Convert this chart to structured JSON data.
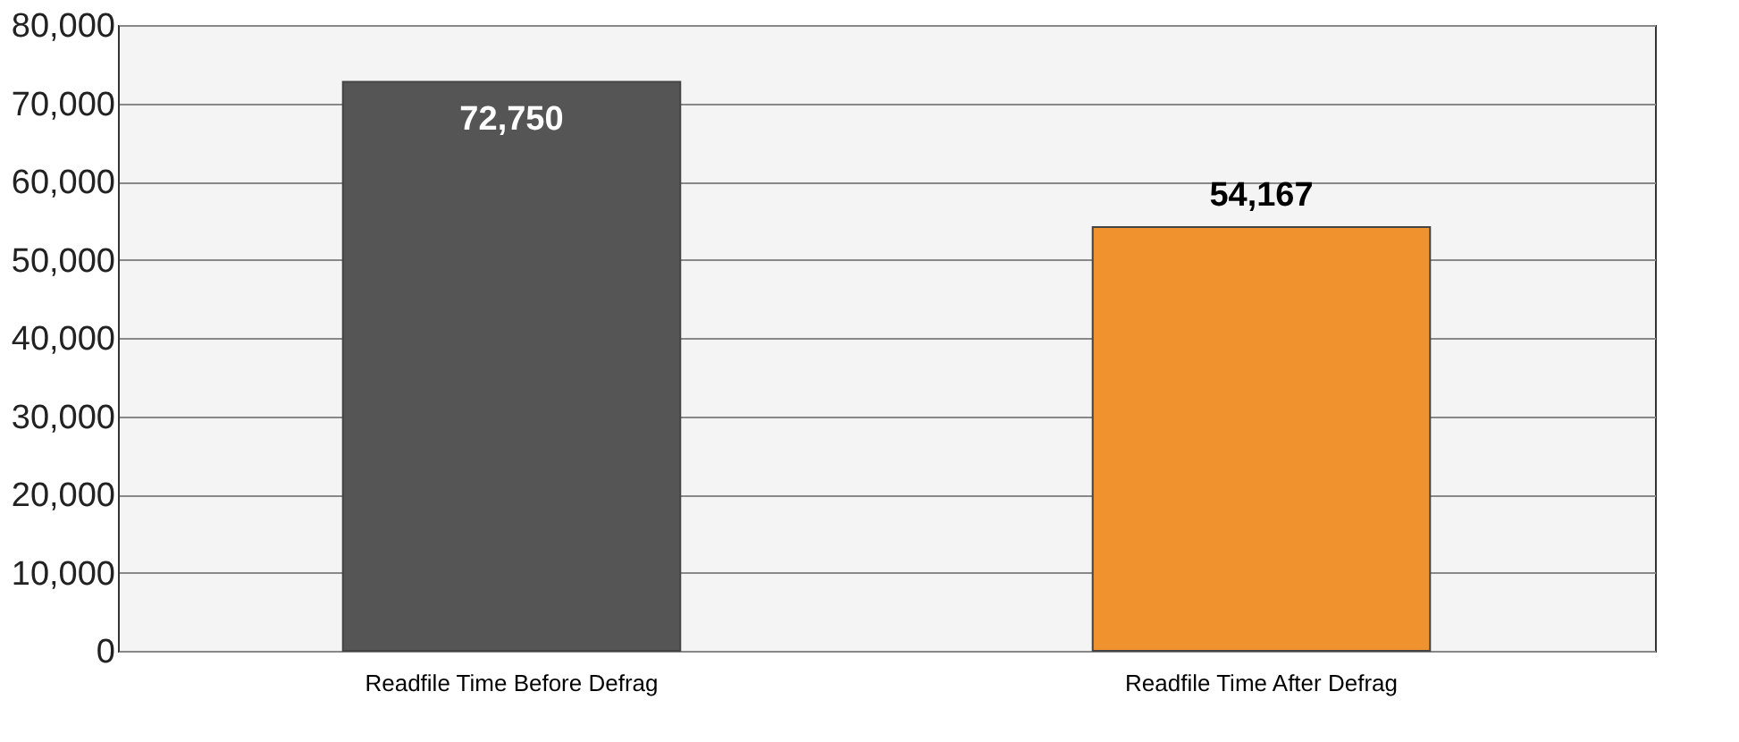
{
  "chart_data": {
    "type": "bar",
    "categories": [
      "Readfile Time Before Defrag",
      "Readfile Time After Defrag"
    ],
    "values": [
      72750,
      54167
    ],
    "value_labels": [
      "72,750",
      "54,167"
    ],
    "colors": [
      "#555555",
      "#f0922e"
    ],
    "ylim": [
      0,
      80000
    ],
    "yticks": [
      0,
      {
        "value": 10000,
        "label": "10,000"
      },
      {
        "value": 20000,
        "label": "20,000"
      },
      {
        "value": 30000,
        "label": "30,000"
      },
      {
        "value": 40000,
        "label": "40,000"
      },
      {
        "value": 50000,
        "label": "50,000"
      },
      {
        "value": 60000,
        "label": "60,000"
      },
      {
        "value": 70000,
        "label": "70,000"
      },
      {
        "value": 80000,
        "label": "80,000"
      }
    ],
    "grid": "y"
  }
}
